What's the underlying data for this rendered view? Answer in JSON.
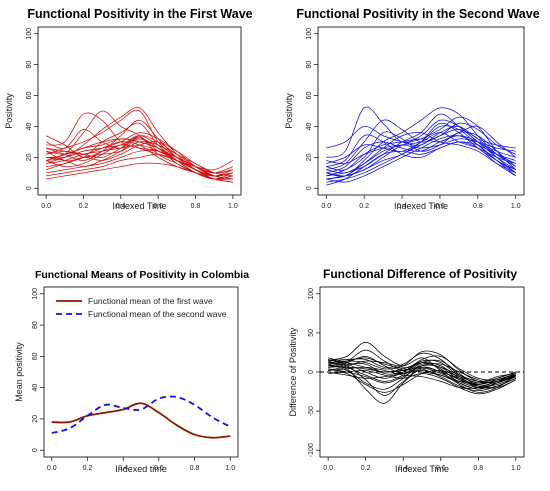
{
  "chart_data": [
    {
      "type": "line",
      "title": "Functional Positivity in the First Wave",
      "xlabel": "Indexed Time",
      "ylabel": "Positivity",
      "xlim": [
        0,
        1
      ],
      "ylim": [
        0,
        100
      ],
      "xticks": [
        "0.0",
        "0.2",
        "0.4",
        "0.6",
        "0.8",
        "1.0"
      ],
      "yticks": [
        "0",
        "20",
        "40",
        "60",
        "80",
        "100"
      ],
      "color": "#d01010",
      "grid": false,
      "x": [
        0,
        0.1,
        0.2,
        0.3,
        0.4,
        0.5,
        0.6,
        0.7,
        0.8,
        0.9,
        1.0
      ],
      "series": [
        {
          "values": [
            34,
            28,
            20,
            24,
            28,
            32,
            26,
            18,
            12,
            8,
            10
          ]
        },
        {
          "values": [
            30,
            26,
            38,
            30,
            26,
            33,
            24,
            20,
            14,
            10,
            12
          ]
        },
        {
          "values": [
            28,
            30,
            48,
            44,
            30,
            26,
            22,
            18,
            12,
            8,
            10
          ]
        },
        {
          "values": [
            20,
            22,
            36,
            50,
            40,
            34,
            22,
            16,
            10,
            6,
            8
          ]
        },
        {
          "values": [
            22,
            26,
            30,
            36,
            44,
            50,
            30,
            20,
            12,
            8,
            10
          ]
        },
        {
          "values": [
            18,
            20,
            28,
            38,
            46,
            52,
            36,
            22,
            12,
            6,
            8
          ]
        },
        {
          "values": [
            24,
            18,
            20,
            30,
            36,
            42,
            28,
            18,
            10,
            6,
            8
          ]
        },
        {
          "values": [
            26,
            22,
            18,
            24,
            34,
            44,
            32,
            20,
            12,
            8,
            12
          ]
        },
        {
          "values": [
            16,
            20,
            24,
            26,
            30,
            36,
            32,
            24,
            14,
            8,
            10
          ]
        },
        {
          "values": [
            22,
            24,
            22,
            20,
            26,
            34,
            30,
            22,
            16,
            10,
            8
          ]
        },
        {
          "values": [
            14,
            16,
            20,
            22,
            24,
            30,
            28,
            20,
            14,
            8,
            6
          ]
        },
        {
          "values": [
            18,
            14,
            16,
            22,
            28,
            26,
            24,
            18,
            12,
            6,
            8
          ]
        },
        {
          "values": [
            20,
            18,
            14,
            18,
            24,
            32,
            26,
            16,
            10,
            6,
            10
          ]
        },
        {
          "values": [
            12,
            16,
            20,
            18,
            22,
            28,
            30,
            24,
            16,
            10,
            12
          ]
        },
        {
          "values": [
            10,
            12,
            14,
            16,
            20,
            24,
            24,
            20,
            14,
            8,
            6
          ]
        },
        {
          "values": [
            8,
            10,
            12,
            14,
            18,
            20,
            22,
            18,
            12,
            6,
            4
          ]
        },
        {
          "values": [
            24,
            22,
            26,
            28,
            32,
            30,
            26,
            18,
            10,
            6,
            6
          ]
        },
        {
          "values": [
            26,
            24,
            22,
            26,
            30,
            28,
            20,
            14,
            10,
            8,
            10
          ]
        },
        {
          "values": [
            16,
            18,
            22,
            24,
            26,
            28,
            24,
            18,
            14,
            12,
            18
          ]
        },
        {
          "values": [
            20,
            20,
            24,
            26,
            28,
            34,
            28,
            22,
            14,
            10,
            14
          ]
        },
        {
          "values": [
            6,
            8,
            10,
            12,
            14,
            16,
            16,
            14,
            10,
            6,
            4
          ]
        },
        {
          "values": [
            18,
            22,
            26,
            30,
            32,
            30,
            26,
            20,
            14,
            8,
            6
          ]
        }
      ]
    },
    {
      "type": "line",
      "title": "Functional Positivity in the Second Wave",
      "xlabel": "Indexed Time",
      "ylabel": "Positivity",
      "xlim": [
        0,
        1
      ],
      "ylim": [
        0,
        100
      ],
      "xticks": [
        "0.0",
        "0.2",
        "0.4",
        "0.6",
        "0.8",
        "1.0"
      ],
      "yticks": [
        "0",
        "20",
        "40",
        "60",
        "80",
        "100"
      ],
      "color": "#1010e0",
      "grid": false,
      "x": [
        0,
        0.1,
        0.2,
        0.3,
        0.4,
        0.5,
        0.6,
        0.7,
        0.8,
        0.9,
        1.0
      ],
      "series": [
        {
          "values": [
            26,
            30,
            40,
            34,
            30,
            28,
            36,
            40,
            32,
            28,
            26
          ]
        },
        {
          "values": [
            20,
            24,
            52,
            42,
            30,
            34,
            44,
            40,
            30,
            24,
            20
          ]
        },
        {
          "values": [
            12,
            16,
            30,
            44,
            38,
            30,
            34,
            42,
            38,
            28,
            22
          ]
        },
        {
          "values": [
            10,
            8,
            18,
            30,
            36,
            44,
            52,
            48,
            34,
            22,
            14
          ]
        },
        {
          "values": [
            8,
            10,
            14,
            22,
            30,
            36,
            48,
            40,
            30,
            20,
            12
          ]
        },
        {
          "values": [
            6,
            8,
            12,
            20,
            28,
            32,
            38,
            46,
            40,
            24,
            12
          ]
        },
        {
          "values": [
            14,
            12,
            22,
            28,
            30,
            32,
            30,
            36,
            40,
            30,
            20
          ]
        },
        {
          "values": [
            4,
            6,
            10,
            16,
            22,
            28,
            34,
            38,
            32,
            20,
            10
          ]
        },
        {
          "values": [
            10,
            14,
            26,
            30,
            26,
            24,
            30,
            34,
            30,
            22,
            16
          ]
        },
        {
          "values": [
            8,
            12,
            20,
            36,
            32,
            24,
            28,
            36,
            34,
            24,
            14
          ]
        },
        {
          "values": [
            16,
            20,
            28,
            26,
            24,
            30,
            40,
            38,
            28,
            18,
            12
          ]
        },
        {
          "values": [
            6,
            4,
            8,
            14,
            20,
            26,
            32,
            34,
            28,
            18,
            8
          ]
        },
        {
          "values": [
            12,
            10,
            16,
            24,
            28,
            30,
            36,
            30,
            26,
            20,
            16
          ]
        },
        {
          "values": [
            18,
            16,
            22,
            26,
            28,
            26,
            28,
            32,
            30,
            26,
            24
          ]
        },
        {
          "values": [
            2,
            6,
            14,
            22,
            24,
            22,
            26,
            30,
            26,
            16,
            8
          ]
        },
        {
          "values": [
            10,
            8,
            12,
            18,
            22,
            30,
            42,
            36,
            26,
            18,
            10
          ]
        },
        {
          "values": [
            14,
            18,
            34,
            30,
            22,
            20,
            26,
            30,
            28,
            22,
            18
          ]
        },
        {
          "values": [
            6,
            8,
            16,
            26,
            34,
            36,
            30,
            28,
            24,
            16,
            10
          ]
        }
      ]
    },
    {
      "type": "line",
      "title": "Functional Means of Positivity in Colombia",
      "xlabel": "Indexed time",
      "ylabel": "Mean positivity",
      "xlim": [
        0,
        1
      ],
      "ylim": [
        0,
        100
      ],
      "xticks": [
        "0.0",
        "0.2",
        "0.4",
        "0.6",
        "0.8",
        "1.0"
      ],
      "yticks": [
        "0",
        "20",
        "40",
        "60",
        "80",
        "100"
      ],
      "legend": "top-left",
      "grid": false,
      "x": [
        0,
        0.1,
        0.2,
        0.3,
        0.4,
        0.5,
        0.6,
        0.7,
        0.8,
        0.9,
        1.0
      ],
      "series": [
        {
          "name": "Functional mean of the first wave",
          "color": "#8b1a00",
          "style": "solid",
          "values": [
            18,
            18,
            22,
            24,
            26,
            30,
            24,
            16,
            10,
            8,
            9
          ]
        },
        {
          "name": "Functional mean of the second wave",
          "color": "#1010e0",
          "style": "dashed",
          "values": [
            11,
            14,
            22,
            29,
            27,
            26,
            33,
            34,
            29,
            21,
            15
          ]
        }
      ]
    },
    {
      "type": "line",
      "title": "Functional Difference of Positivity",
      "xlabel": "Indexed Time",
      "ylabel": "Difference of Positivity",
      "xlim": [
        0,
        1
      ],
      "ylim": [
        -100,
        100
      ],
      "xticks": [
        "0.0",
        "0.2",
        "0.4",
        "0.6",
        "0.8",
        "1.0"
      ],
      "yticks": [
        "-100",
        "-50",
        "0",
        "50",
        "100"
      ],
      "color": "#000000",
      "reference_line": 0,
      "grid": false,
      "x": [
        0,
        0.1,
        0.2,
        0.3,
        0.4,
        0.5,
        0.6,
        0.7,
        0.8,
        0.9,
        1.0
      ],
      "series": [
        {
          "values": [
            15,
            20,
            38,
            20,
            8,
            18,
            2,
            -10,
            -18,
            -12,
            -4
          ]
        },
        {
          "values": [
            10,
            14,
            28,
            14,
            2,
            12,
            4,
            -14,
            -22,
            -14,
            -2
          ]
        },
        {
          "values": [
            12,
            8,
            -10,
            -30,
            -12,
            6,
            0,
            -8,
            -16,
            -10,
            -6
          ]
        },
        {
          "values": [
            8,
            4,
            -22,
            -40,
            -14,
            4,
            -2,
            -12,
            -20,
            -14,
            -4
          ]
        },
        {
          "values": [
            14,
            16,
            16,
            6,
            10,
            24,
            16,
            -4,
            -14,
            -8,
            0
          ]
        },
        {
          "values": [
            6,
            10,
            10,
            -2,
            0,
            14,
            12,
            -6,
            -18,
            -16,
            -6
          ]
        },
        {
          "values": [
            18,
            12,
            6,
            0,
            4,
            12,
            8,
            -8,
            -20,
            -18,
            -8
          ]
        },
        {
          "values": [
            4,
            0,
            -6,
            -14,
            -6,
            8,
            10,
            0,
            -10,
            -14,
            -2
          ]
        },
        {
          "values": [
            2,
            6,
            4,
            0,
            2,
            6,
            0,
            -16,
            -26,
            -20,
            -4
          ]
        },
        {
          "values": [
            10,
            2,
            -14,
            -22,
            -8,
            10,
            6,
            -4,
            -12,
            -8,
            0
          ]
        },
        {
          "values": [
            0,
            -4,
            -8,
            -6,
            -2,
            2,
            -4,
            -14,
            -22,
            -14,
            -6
          ]
        },
        {
          "values": [
            16,
            10,
            0,
            -8,
            0,
            16,
            20,
            4,
            -8,
            -10,
            -2
          ]
        },
        {
          "values": [
            6,
            8,
            14,
            12,
            6,
            4,
            -6,
            -18,
            -24,
            -18,
            -8
          ]
        },
        {
          "values": [
            12,
            14,
            12,
            4,
            8,
            26,
            22,
            2,
            -12,
            -12,
            -4
          ]
        },
        {
          "values": [
            -2,
            0,
            2,
            -4,
            -8,
            -2,
            -8,
            -20,
            -28,
            -22,
            -10
          ]
        },
        {
          "values": [
            8,
            12,
            20,
            8,
            -2,
            8,
            6,
            -10,
            -16,
            -10,
            -2
          ]
        },
        {
          "values": [
            4,
            -2,
            -16,
            -26,
            -16,
            -2,
            2,
            -6,
            -14,
            -12,
            -6
          ]
        },
        {
          "values": [
            14,
            6,
            -4,
            -12,
            -4,
            12,
            14,
            -2,
            -18,
            -20,
            -10
          ]
        },
        {
          "values": [
            10,
            14,
            18,
            10,
            4,
            0,
            -4,
            -12,
            -14,
            -6,
            -2
          ]
        },
        {
          "values": [
            2,
            4,
            6,
            2,
            -4,
            -6,
            -12,
            -20,
            -20,
            -12,
            -4
          ]
        }
      ]
    }
  ]
}
